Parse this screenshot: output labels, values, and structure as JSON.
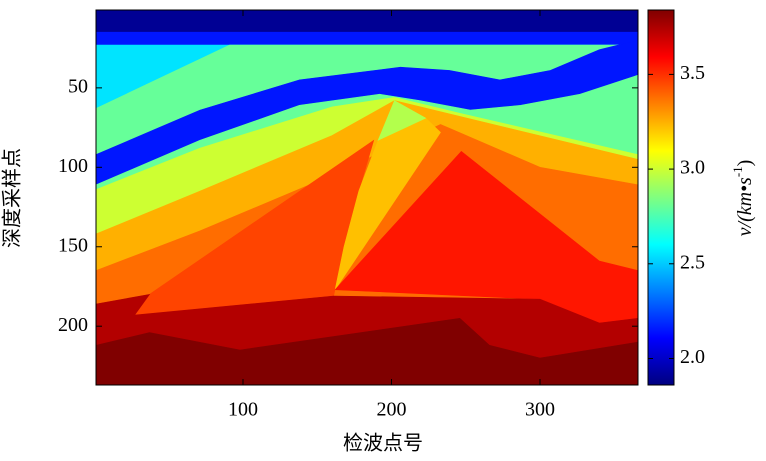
{
  "chart_data": {
    "type": "layered-model",
    "xlabel": "检波点号",
    "ylabel": "深度采样点",
    "xlim": [
      1,
      366
    ],
    "ylim": [
      1,
      237
    ],
    "y_reversed": true,
    "xticks": [
      100,
      200,
      300
    ],
    "yticks": [
      50,
      100,
      150,
      200
    ],
    "colormap": "jet",
    "clim": [
      1.86,
      3.84
    ],
    "colorbar_ticks": [
      {
        "value": 2,
        "label": "2.0"
      },
      2.5,
      {
        "value": 3,
        "label": "3.0"
      },
      3.5
    ],
    "colorbar_label": {
      "main": "v/(km•s",
      "sup": "-1",
      "end": ")"
    },
    "layers": [
      {
        "value": 1.9,
        "polygon": [
          [
            1,
            1
          ],
          [
            366,
            1
          ],
          [
            366,
            237
          ],
          [
            1,
            237
          ]
        ]
      },
      {
        "value": 2.15,
        "polygon": [
          [
            1,
            15
          ],
          [
            366,
            15
          ],
          [
            366,
            237
          ],
          [
            1,
            237
          ]
        ]
      },
      {
        "value": 2.55,
        "polygon": [
          [
            1,
            23
          ],
          [
            366,
            23
          ],
          [
            366,
            237
          ],
          [
            1,
            237
          ]
        ]
      },
      {
        "value": 2.8,
        "polygon": [
          [
            1,
            63
          ],
          [
            91,
            23
          ],
          [
            366,
            23
          ],
          [
            366,
            237
          ],
          [
            1,
            237
          ]
        ]
      },
      {
        "value": 2.15,
        "polygon": [
          [
            1,
            92
          ],
          [
            71,
            64
          ],
          [
            138,
            45
          ],
          [
            206,
            37
          ],
          [
            239,
            39
          ],
          [
            273,
            45
          ],
          [
            307,
            39
          ],
          [
            340,
            26
          ],
          [
            366,
            20
          ],
          [
            366,
            237
          ],
          [
            1,
            237
          ]
        ]
      },
      {
        "value": 2.8,
        "polygon": [
          [
            1,
            111
          ],
          [
            71,
            83
          ],
          [
            138,
            61
          ],
          [
            192,
            54
          ],
          [
            219,
            58
          ],
          [
            253,
            64
          ],
          [
            287,
            61
          ],
          [
            327,
            54
          ],
          [
            366,
            42
          ],
          [
            366,
            237
          ],
          [
            1,
            237
          ]
        ]
      },
      {
        "value": 3.0,
        "polygon": [
          [
            1,
            114
          ],
          [
            71,
            88
          ],
          [
            160,
            62
          ],
          [
            202,
            56
          ],
          [
            246,
            66
          ],
          [
            366,
            92
          ],
          [
            366,
            237
          ],
          [
            1,
            237
          ]
        ]
      },
      {
        "value": 3.25,
        "polygon": [
          [
            1,
            142
          ],
          [
            71,
            115
          ],
          [
            160,
            80
          ],
          [
            202,
            58
          ],
          [
            366,
            95
          ],
          [
            366,
            237
          ],
          [
            1,
            237
          ]
        ]
      },
      {
        "value": 3.38,
        "polygon": [
          [
            1,
            165
          ],
          [
            71,
            140
          ],
          [
            160,
            105
          ],
          [
            233,
            73
          ],
          [
            300,
            100
          ],
          [
            366,
            111
          ],
          [
            366,
            237
          ],
          [
            1,
            237
          ]
        ]
      },
      {
        "value": 3.46,
        "polygon": [
          [
            27,
            193
          ],
          [
            37,
            180
          ],
          [
            188,
            83
          ],
          [
            178,
            115
          ],
          [
            168,
            150
          ],
          [
            161,
            181
          ]
        ]
      },
      {
        "value": 3.22,
        "polygon": [
          [
            191,
            83
          ],
          [
            223,
            69
          ],
          [
            233,
            78
          ],
          [
            162,
            177
          ],
          [
            168,
            150
          ],
          [
            178,
            115
          ]
        ]
      },
      {
        "value": 2.95,
        "polygon": [
          [
            202,
            58
          ],
          [
            223,
            69
          ],
          [
            191,
            83
          ]
        ]
      },
      {
        "value": 3.55,
        "polygon": [
          [
            247,
            90
          ],
          [
            340,
            159
          ],
          [
            366,
            165
          ],
          [
            366,
            196
          ],
          [
            340,
            198
          ],
          [
            300,
            183
          ],
          [
            162,
            177
          ]
        ]
      },
      {
        "value": 3.74,
        "polygon": [
          [
            1,
            186
          ],
          [
            37,
            180
          ],
          [
            27,
            193
          ],
          [
            161,
            181
          ],
          [
            300,
            183
          ],
          [
            340,
            198
          ],
          [
            366,
            195
          ],
          [
            366,
            237
          ],
          [
            1,
            237
          ]
        ]
      },
      {
        "value": 3.84,
        "polygon": [
          [
            1,
            212
          ],
          [
            37,
            204
          ],
          [
            98,
            215
          ],
          [
            246,
            195
          ],
          [
            266,
            212
          ],
          [
            300,
            220
          ],
          [
            366,
            210
          ],
          [
            366,
            237
          ],
          [
            1,
            237
          ]
        ]
      }
    ]
  }
}
